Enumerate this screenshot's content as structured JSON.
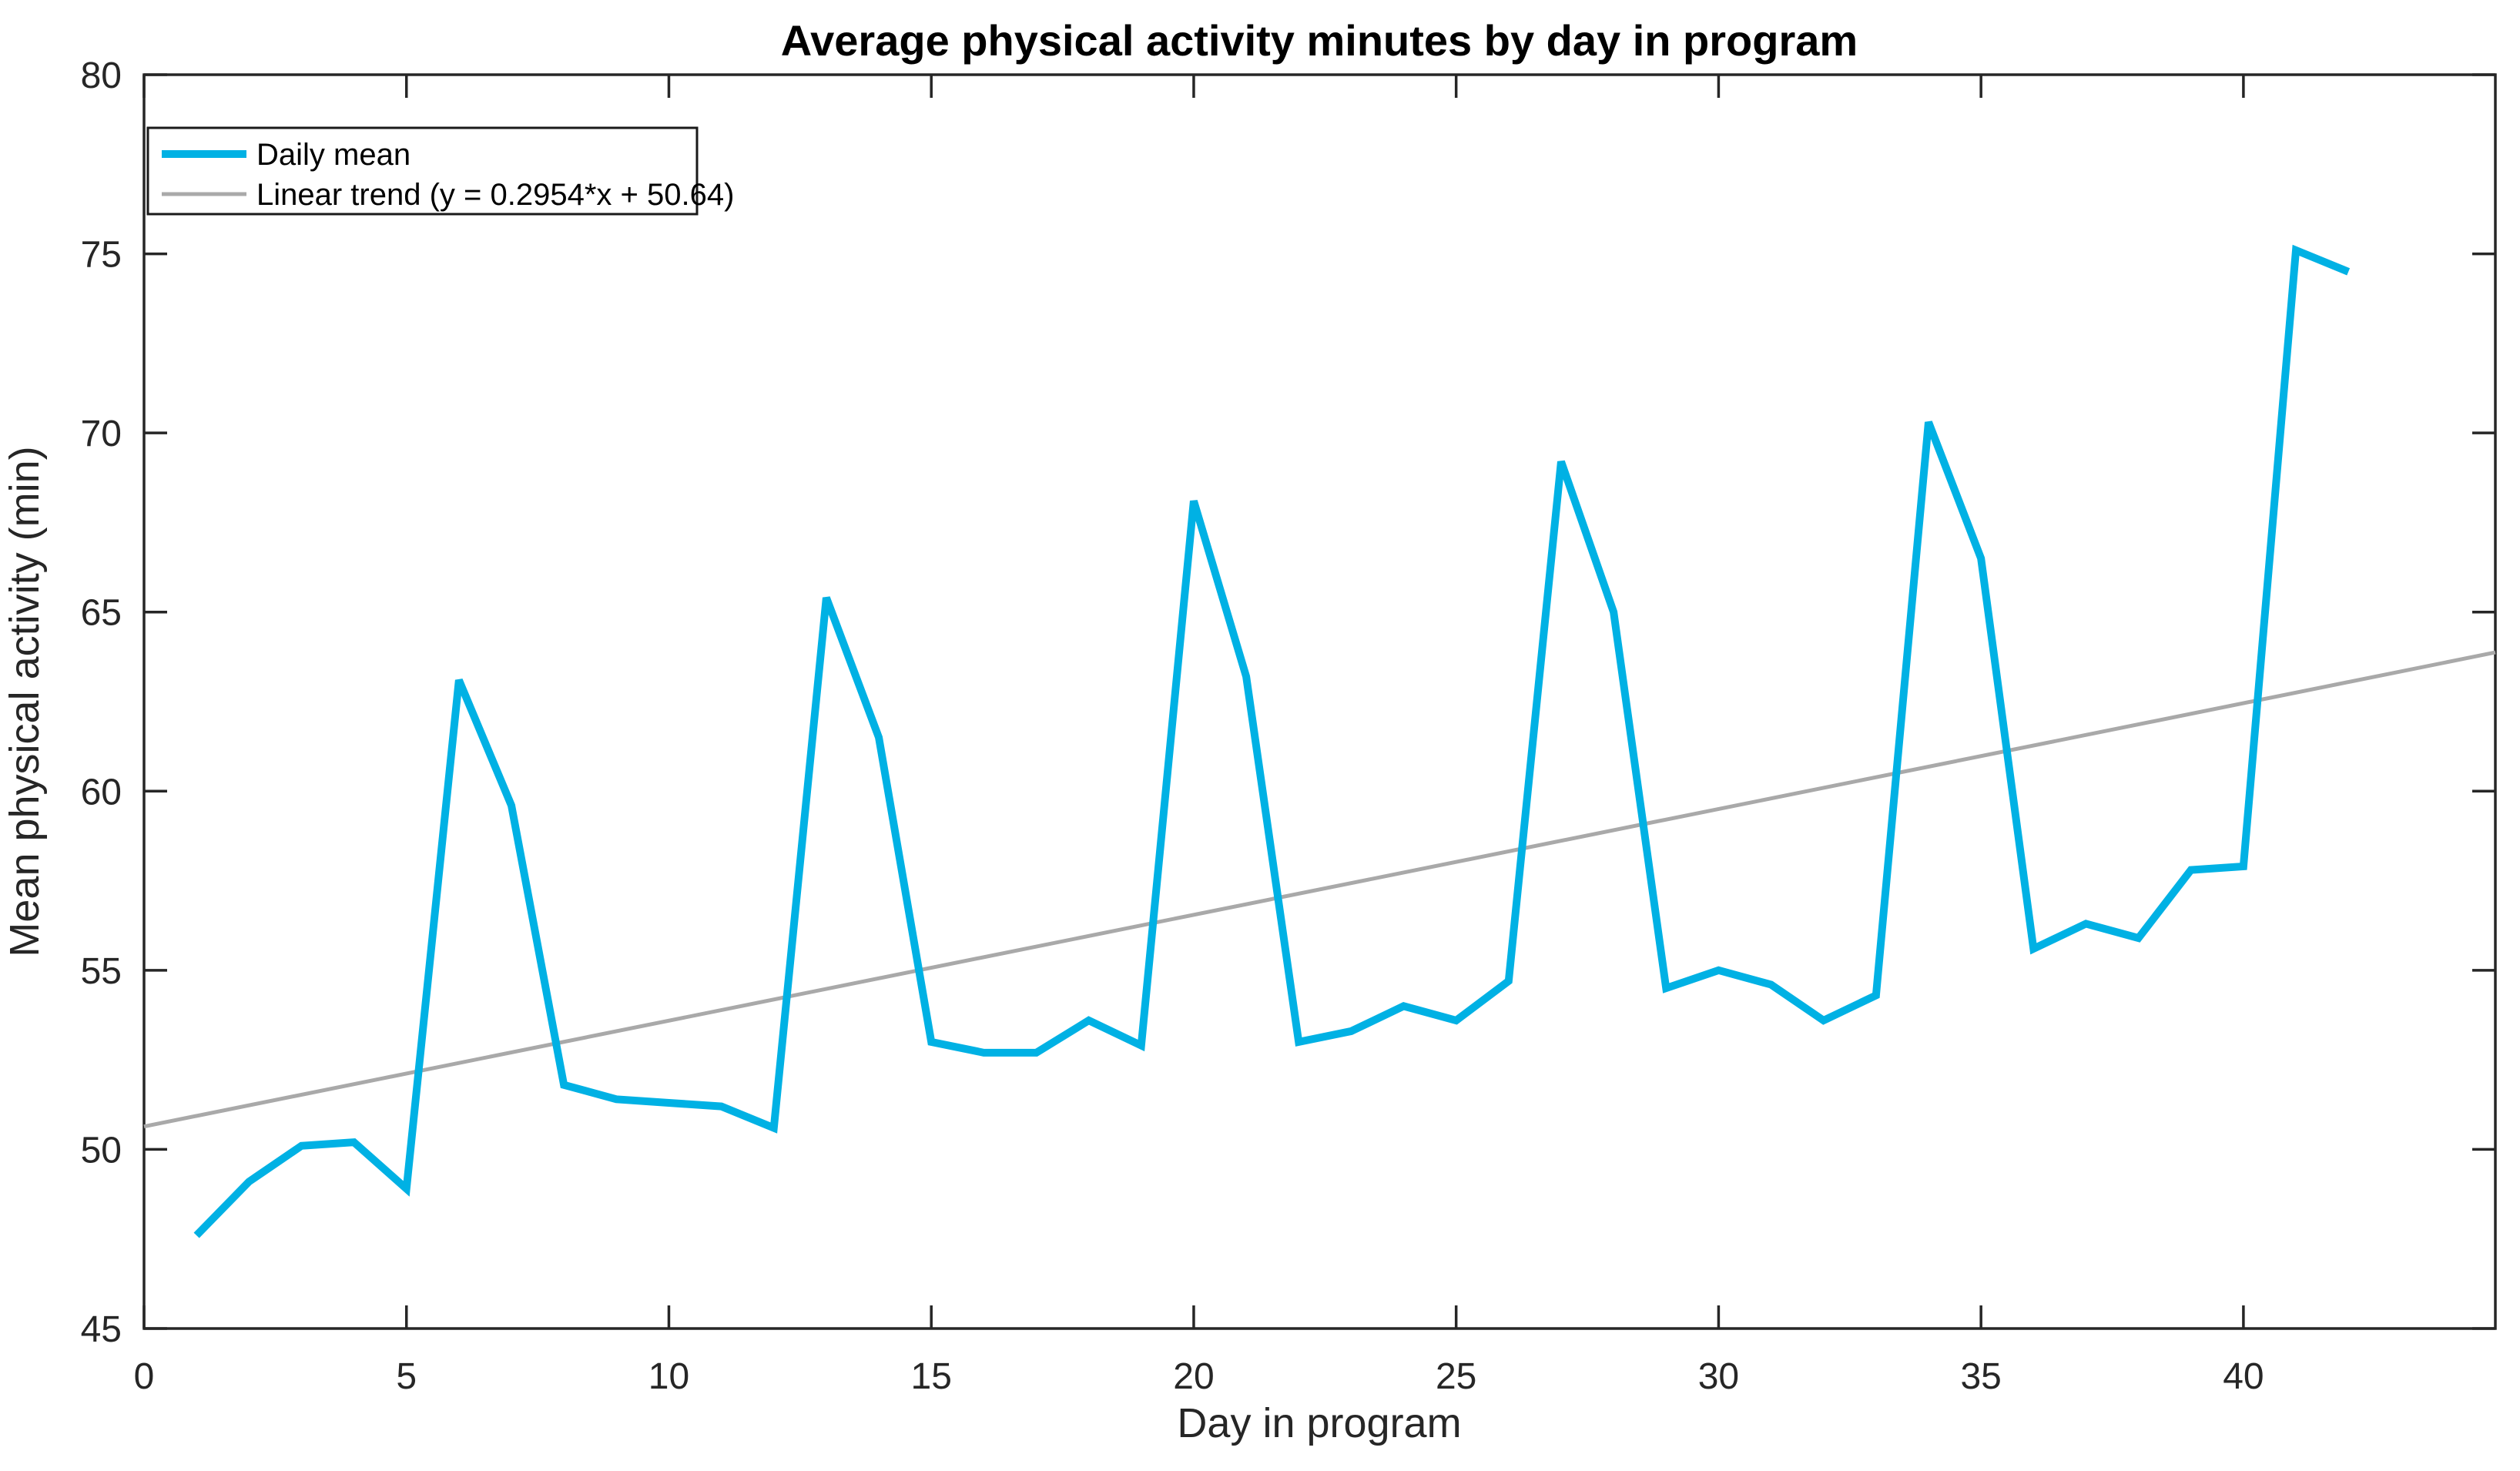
{
  "chart_data": {
    "type": "line",
    "title": "Average physical activity minutes by day in program",
    "xlabel": "Day in program",
    "ylabel": "Mean physical activity (min)",
    "xlim": [
      0,
      44.8
    ],
    "ylim": [
      45,
      80
    ],
    "x_ticks": [
      0,
      5,
      10,
      15,
      20,
      25,
      30,
      35,
      40
    ],
    "y_ticks": [
      45,
      50,
      55,
      60,
      65,
      70,
      75,
      80
    ],
    "grid": false,
    "legend_position": "upper-left",
    "series": [
      {
        "name": "Daily mean",
        "type": "line",
        "color": "#00B1E4",
        "stroke_width": 10,
        "x": [
          1,
          2,
          3,
          4,
          5,
          6,
          7,
          8,
          9,
          10,
          11,
          12,
          13,
          14,
          15,
          16,
          17,
          18,
          19,
          20,
          21,
          22,
          23,
          24,
          25,
          26,
          27,
          28,
          29,
          30,
          31,
          32,
          33,
          34,
          35,
          36,
          37,
          38,
          39,
          40,
          41,
          42
        ],
        "values": [
          47.6,
          49.1,
          50.1,
          50.2,
          48.9,
          63.1,
          59.6,
          51.8,
          51.4,
          51.3,
          51.2,
          50.6,
          65.4,
          61.5,
          53.0,
          52.7,
          52.7,
          53.6,
          52.9,
          68.1,
          63.2,
          53.0,
          53.3,
          54.0,
          53.6,
          54.7,
          69.2,
          65.0,
          54.5,
          55.0,
          54.6,
          53.6,
          54.3,
          70.3,
          66.5,
          55.6,
          56.3,
          55.9,
          57.8,
          57.9,
          75.1,
          74.5
        ]
      },
      {
        "name": "Linear trend (y = 0.2954*x + 50.64)",
        "type": "trend-line",
        "color": "#A9A9A9",
        "stroke_width": 5,
        "slope": 0.2954,
        "intercept": 50.64,
        "x_range": [
          0,
          44.8
        ]
      }
    ]
  },
  "colors": {
    "background": "#FFFFFF",
    "axis": "#262626",
    "title": "#000000",
    "legend_border": "#1a1a1a"
  }
}
